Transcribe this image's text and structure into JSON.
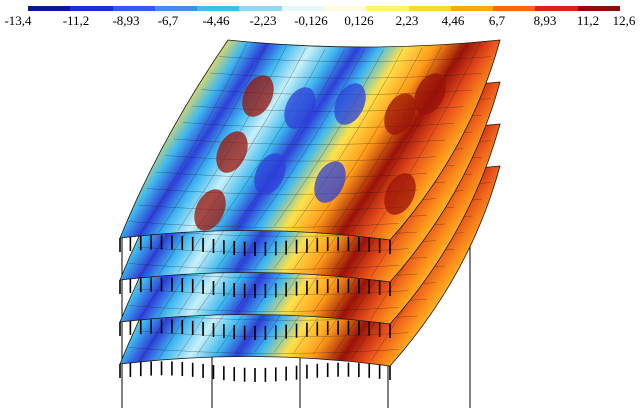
{
  "color_scale": {
    "labels": [
      "-13,4",
      "-11,2",
      "-8,93",
      "-6,7",
      "-4,46",
      "-2,23",
      "-0,126",
      "0,126",
      "2,23",
      "4,46",
      "6,7",
      "8,93",
      "11,2",
      "12,6"
    ],
    "colors": [
      "#0a1a8c",
      "#1732c8",
      "#2e5fe0",
      "#3f8fe8",
      "#48b8ee",
      "#8fdaf2",
      "#e6f7fb",
      "#fffbe0",
      "#fff27a",
      "#ffd640",
      "#ffa61e",
      "#f26a14",
      "#cc2a0e",
      "#8a0f08"
    ]
  },
  "model": {
    "levels": 4,
    "palette": {
      "deep_blue": "#2e3fd8",
      "cyan": "#3fb8f0",
      "light": "#c8f0f8",
      "yellow": "#ffe14a",
      "orange": "#ff9a1a",
      "red_orange": "#e8501a",
      "dark_red": "#9a1208",
      "mesh": "#1a1a1a",
      "column": "#000000",
      "support_label": "#b8e27a"
    }
  }
}
